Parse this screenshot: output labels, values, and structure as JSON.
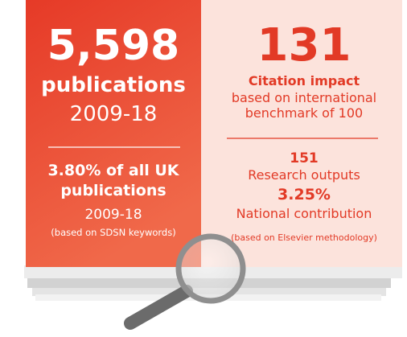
{
  "left": {
    "headline": "5,598",
    "headline_label": "publications",
    "period": "2009-18",
    "share": "3.80% of all UK publications",
    "share_period": "2009-18",
    "note": "(based on SDSN keywords)"
  },
  "right": {
    "headline": "131",
    "headline_label": "Citation impact",
    "description": "based on international benchmark of 100",
    "outputs": "151",
    "outputs_label": "Research outputs",
    "contribution": "3.25%",
    "contribution_label": "National contribution",
    "note": "(based on Elsevier methodology)"
  }
}
